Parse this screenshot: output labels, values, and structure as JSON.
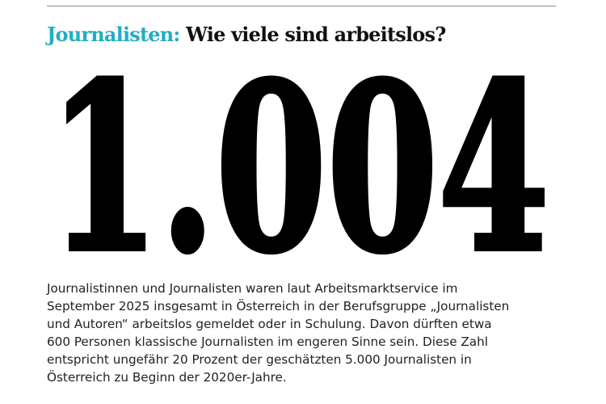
{
  "header": {
    "kicker": "Journalisten:",
    "title": "Wie viele sind arbeitslos?"
  },
  "big_number": "1.004",
  "body": {
    "lines": [
      "Journalistinnen und Journalisten waren laut Arbeitsmarktservice im",
      "September 2025 insgesamt in Österreich in der Berufsgruppe „Journalisten",
      "und Autoren“ arbeitslos gemeldet oder in Schulung. Davon dürften etwa",
      "600 Personen klassische Journalisten im engeren Sinne sein. Diese Zahl",
      "entspricht ungefähr 20 Prozent der geschätzten 5.000 Journalisten in",
      "Österreich zu Beginn der 2020er-Jahre."
    ]
  }
}
